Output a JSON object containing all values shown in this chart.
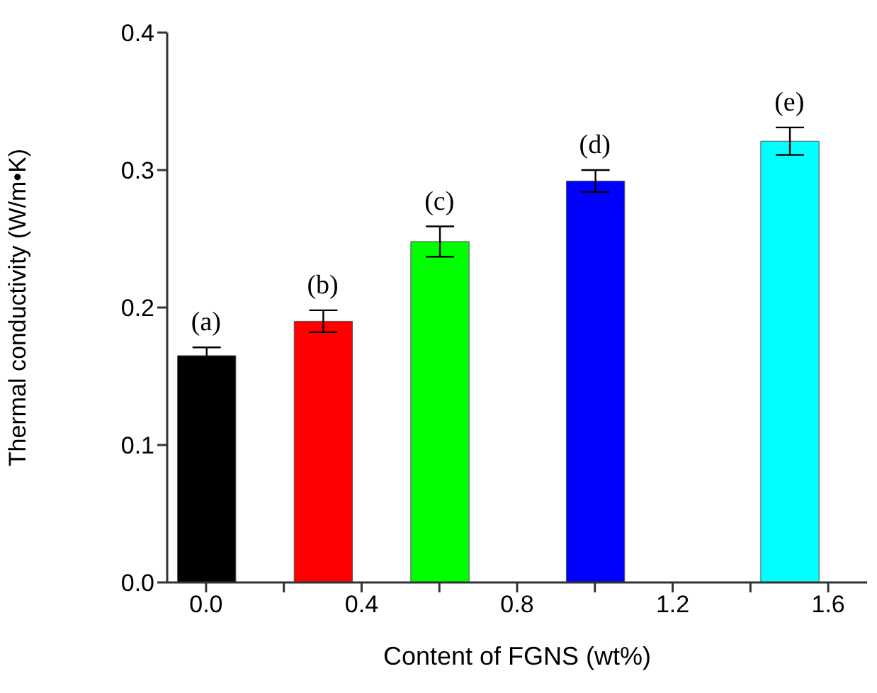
{
  "chart_data": {
    "type": "bar",
    "xlabel": "Content of FGNS (wt%)",
    "ylabel": "Thermal conductivity (W/m•K)",
    "x": [
      0.0,
      0.3,
      0.6,
      1.0,
      1.5
    ],
    "values": [
      0.165,
      0.19,
      0.248,
      0.292,
      0.321
    ],
    "errors": [
      0.006,
      0.008,
      0.011,
      0.008,
      0.01
    ],
    "colors": [
      "#000000",
      "#ff0000",
      "#00ff00",
      "#0000ff",
      "#00ffff"
    ],
    "xlim": [
      -0.1,
      1.7
    ],
    "xticks": [
      {
        "value": 0.0,
        "label": "0.0"
      },
      {
        "value": 0.2,
        "label": null
      },
      {
        "value": 0.4,
        "label": "0.4"
      },
      {
        "value": 0.6,
        "label": null
      },
      {
        "value": 0.8,
        "label": "0.8"
      },
      {
        "value": 1.0,
        "label": null
      },
      {
        "value": 1.2,
        "label": "1.2"
      },
      {
        "value": 1.4,
        "label": null
      },
      {
        "value": 1.6,
        "label": "1.6"
      }
    ],
    "ylim": [
      0,
      0.4
    ],
    "yticks": [
      {
        "value": 0,
        "label": "0.0"
      },
      {
        "value": 0.1,
        "label": "0.1"
      },
      {
        "value": 0.2,
        "label": "0.2"
      },
      {
        "value": 0.3,
        "label": "0.3"
      },
      {
        "value": 0.4,
        "label": "0.4"
      }
    ],
    "annotations": [
      {
        "text": "(a)",
        "x": 0.0,
        "y": 0.165
      },
      {
        "text": "(b)",
        "x": 0.3,
        "y": 0.19
      },
      {
        "text": "(c)",
        "x": 0.6,
        "y": 0.248
      },
      {
        "text": "(d)",
        "x": 1.0,
        "y": 0.292
      },
      {
        "text": "(e)",
        "x": 1.5,
        "y": 0.321
      }
    ]
  }
}
